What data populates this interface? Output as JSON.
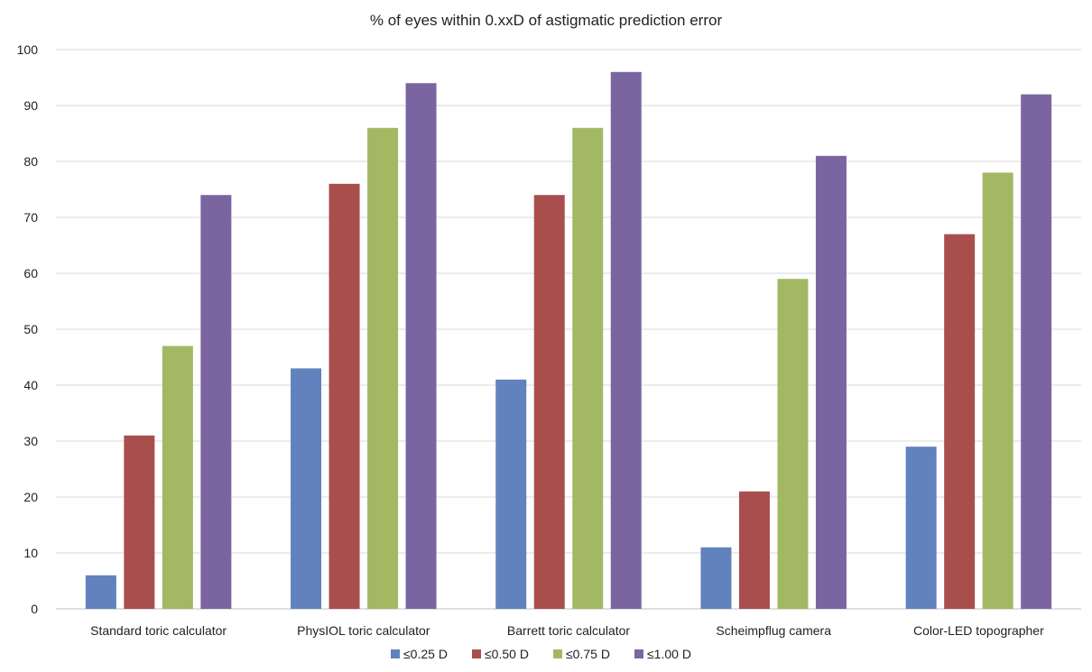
{
  "chart_data": {
    "type": "bar",
    "title": "% of eyes within 0.xxD of astigmatic prediction error",
    "xlabel": "",
    "ylabel": "",
    "ylim": [
      0,
      100
    ],
    "yticks": [
      "0",
      "10",
      "20",
      "30",
      "40",
      "50",
      "60",
      "70",
      "80",
      "90",
      "100"
    ],
    "grid": true,
    "legend_position": "bottom",
    "categories": [
      "Standard toric calculator",
      "PhysIOL toric calculator",
      "Barrett toric calculator",
      "Scheimpflug camera",
      "Color-LED topographer"
    ],
    "series": [
      {
        "name": "≤0.25 D",
        "color": "#6282bd",
        "values": [
          6,
          43,
          41,
          11,
          29
        ]
      },
      {
        "name": "≤0.50 D",
        "color": "#a84f4d",
        "values": [
          31,
          76,
          74,
          21,
          67
        ]
      },
      {
        "name": "≤0.75 D",
        "color": "#a3b863",
        "values": [
          47,
          86,
          86,
          59,
          78
        ]
      },
      {
        "name": "≤1.00 D",
        "color": "#7b65a1",
        "values": [
          74,
          94,
          96,
          81,
          92
        ]
      }
    ]
  }
}
